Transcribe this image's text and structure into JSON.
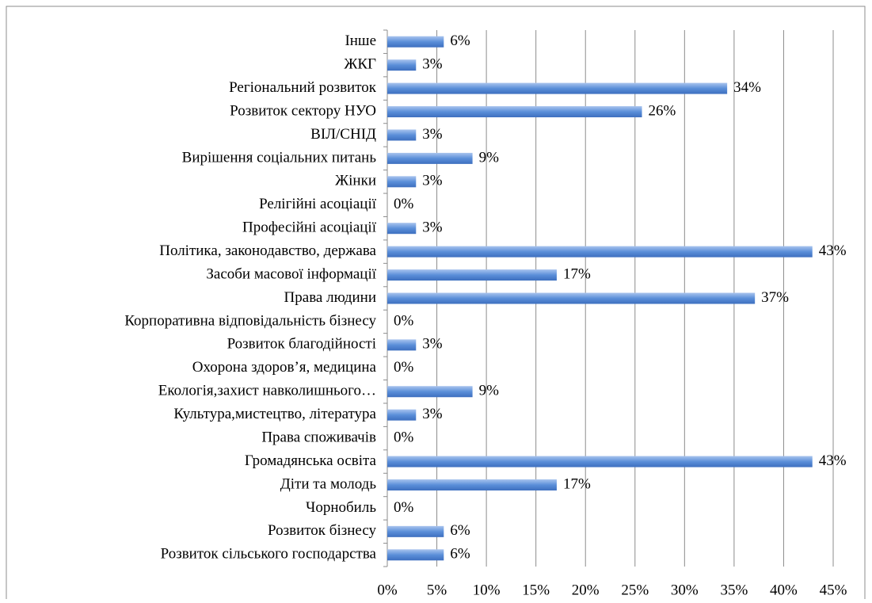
{
  "chart_data": {
    "type": "bar",
    "orientation": "horizontal",
    "categories": [
      "Інше",
      "ЖКГ",
      "Регіональний розвиток",
      "Розвиток сектору НУО",
      "ВІЛ/СНІД",
      "Вирішення соціальних питань",
      "Жінки",
      "Релігійні асоціації",
      "Професійні асоціації",
      "Політика, законодавство, держава",
      "Засоби масової інформації",
      "Права людини",
      "Корпоративна відповідальність бізнесу",
      "Розвиток благодійності",
      "Охорона здоров’я, медицина",
      "Екологія,захист навколишнього…",
      "Культура,мистецтво, література",
      "Права споживачів",
      "Громадянська освіта",
      "Діти та молодь",
      "Чорнобиль",
      "Розвиток бізнесу",
      "Розвиток сільського господарства"
    ],
    "values": [
      5.7,
      2.9,
      34.3,
      25.7,
      2.9,
      8.6,
      2.9,
      0,
      2.9,
      42.9,
      17.1,
      37.1,
      0,
      2.9,
      0,
      8.6,
      2.9,
      0,
      42.9,
      17.1,
      0,
      5.7,
      5.7
    ],
    "value_labels": [
      "6%",
      "3%",
      "34%",
      "26%",
      "3%",
      "9%",
      "3%",
      "0%",
      "3%",
      "43%",
      "17%",
      "37%",
      "0%",
      "3%",
      "0%",
      "9%",
      "3%",
      "0%",
      "43%",
      "17%",
      "0%",
      "6%",
      "6%"
    ],
    "color": "#5b8fd9",
    "xlim": [
      0,
      45
    ],
    "xticks": [
      {
        "value": 0,
        "label": "0%"
      },
      {
        "value": 5,
        "label": "5%"
      },
      {
        "value": 10,
        "label": "10%"
      },
      {
        "value": 15,
        "label": "15%"
      },
      {
        "value": 20,
        "label": "20%"
      },
      {
        "value": 25,
        "label": "25%"
      },
      {
        "value": 30,
        "label": "30%"
      },
      {
        "value": 35,
        "label": "35%"
      },
      {
        "value": 40,
        "label": "40%"
      },
      {
        "value": 45,
        "label": "45%"
      }
    ],
    "grid": true
  }
}
